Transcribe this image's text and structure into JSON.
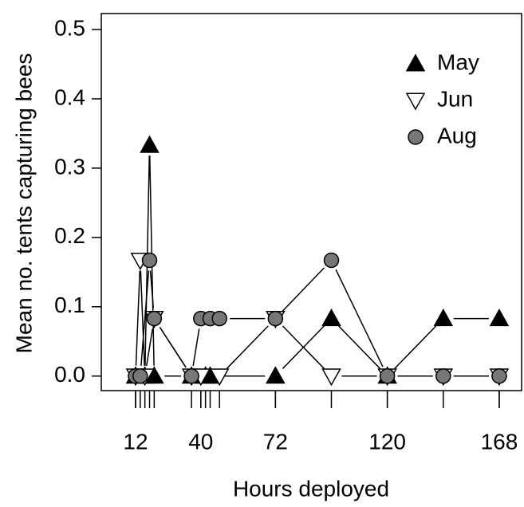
{
  "chart_data": {
    "type": "line",
    "x_label": "Hours deployed",
    "y_label": "Mean no. tents capturing bees",
    "xlim": [
      -2.7,
      177.6
    ],
    "ylim": [
      -0.021,
      0.523
    ],
    "xticks": [
      12,
      40,
      72,
      120,
      168
    ],
    "xminor_ticks": [
      12,
      14,
      16,
      18,
      20,
      36,
      40,
      42,
      44,
      48,
      72,
      96,
      120,
      144,
      168
    ],
    "yticks": [
      {
        "value": 0,
        "label": "0.0"
      },
      0.1,
      0.2,
      0.3,
      0.4,
      0.5
    ],
    "legend": "top-right",
    "series": [
      {
        "name": "May",
        "marker": "triangle-up",
        "color": "#000000",
        "x": [
          12,
          16,
          18,
          20,
          36,
          42,
          44,
          72,
          96,
          120,
          144,
          168
        ],
        "values": [
          0,
          0,
          0.333,
          0,
          0,
          0,
          0,
          0,
          0.083,
          0,
          0.083,
          0.083
        ]
      },
      {
        "name": "Jun",
        "marker": "triangle-down",
        "color": "#ffffff",
        "x": [
          12,
          14,
          16,
          20,
          36,
          40,
          48,
          72,
          96,
          120,
          144,
          168
        ],
        "values": [
          0,
          0.167,
          0,
          0.083,
          0,
          0,
          0,
          0.083,
          0,
          0,
          0,
          0
        ]
      },
      {
        "name": "Aug",
        "marker": "circle",
        "color": "#777777",
        "x": [
          12,
          14,
          18,
          20,
          36,
          40,
          44,
          48,
          72,
          96,
          120,
          144,
          168
        ],
        "values": [
          0,
          0,
          0.167,
          0.083,
          0,
          0.083,
          0.083,
          0.083,
          0.083,
          0.167,
          0,
          0,
          0
        ]
      }
    ]
  }
}
